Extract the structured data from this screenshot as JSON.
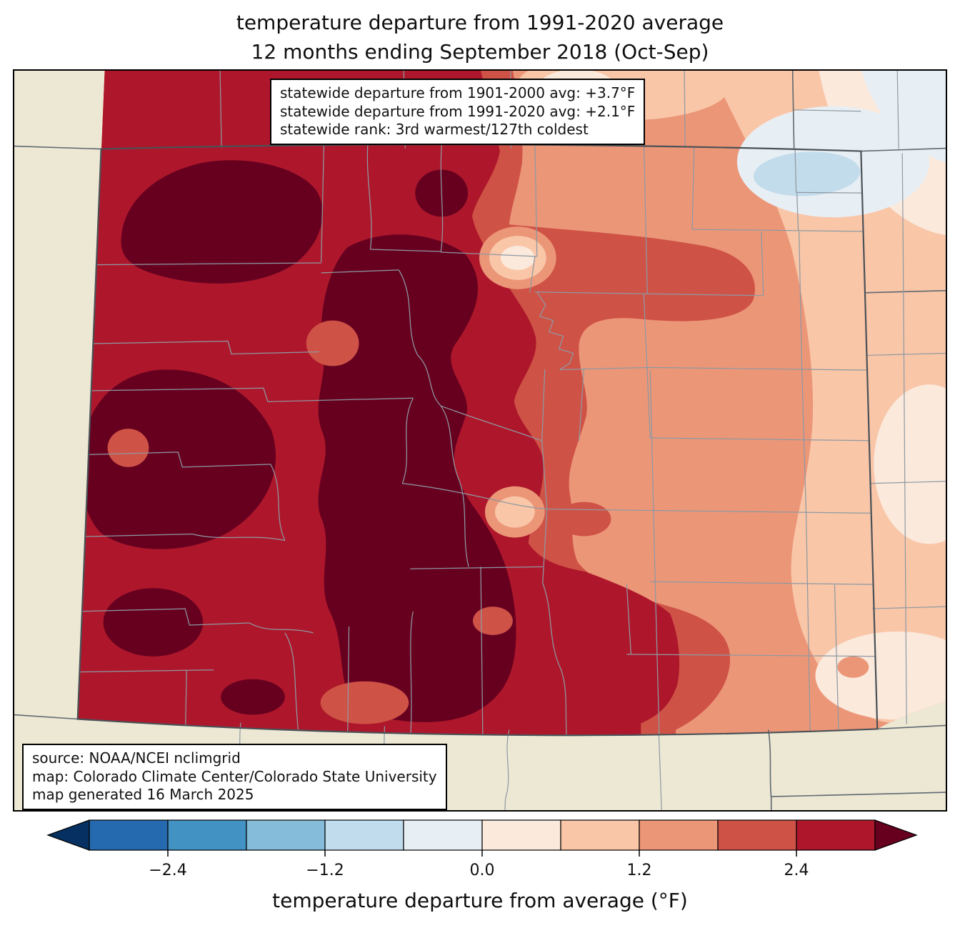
{
  "title": {
    "line1": "temperature departure from 1991-2020 average",
    "line2": "12 months ending September 2018 (Oct-Sep)"
  },
  "stats_box": {
    "line1": "statewide departure from 1901-2000 avg: +3.7°F",
    "line2": "statewide departure from 1991-2020 avg: +2.1°F",
    "line3": "statewide rank: 3rd warmest/127th coldest"
  },
  "source_box": {
    "line1": "source: NOAA/NCEI nclimgrid",
    "line2": "map: Colorado Climate Center/Colorado State University",
    "line3": "map generated 16 March 2025"
  },
  "colorbar": {
    "label": "temperature departure from average (°F)",
    "ticks": [
      "−2.4",
      "−1.2",
      "0.0",
      "1.2",
      "2.4"
    ],
    "tick_values": [
      -2.4,
      -1.2,
      0.0,
      1.2,
      2.4
    ],
    "range": [
      -3.0,
      3.0
    ],
    "step": 0.6,
    "segment_colors": [
      "#2569ae",
      "#4292c3",
      "#84bcd9",
      "#c1dcec",
      "#e8eff4",
      "#fbe9dc",
      "#f9c6a8",
      "#ec9678",
      "#cf5246",
      "#ae172b"
    ],
    "left_arrow_color": "#053061",
    "right_arrow_color": "#67001f"
  },
  "palette": {
    "land": "#ece8d4",
    "darkest_red": "#67001f",
    "dark_red": "#ae172b",
    "mid_red": "#cf5246",
    "salmon": "#ec9678",
    "peach": "#f9c6a8",
    "pale_peach": "#fbe9dc",
    "pale_blue_white": "#e8eff4",
    "light_blue": "#c3dcec",
    "county_line": "#8e99a2",
    "state_line": "#606870",
    "colorado_border": "#4a5157"
  },
  "chart_data": {
    "type": "choropleth-map",
    "region": "Colorado (with county borders) and surrounding states",
    "variable": "temperature departure from average (°F), 12 months ending September 2018",
    "statewide": {
      "departure_from_1901_2000_avg_F": 3.7,
      "departure_from_1991_2020_avg_F": 2.1,
      "rank": "3rd warmest / 127th coldest"
    },
    "pattern": "warmest anomalies (>+2.4°F, dark red) over western and central Colorado mountains; +1.2 to +2.4°F over the central plains; near zero to slightly below average (pale/light blue) in the far northeast corner",
    "scale": {
      "min": -3.0,
      "max": 3.0,
      "interval": 0.6,
      "extend": "both"
    }
  }
}
